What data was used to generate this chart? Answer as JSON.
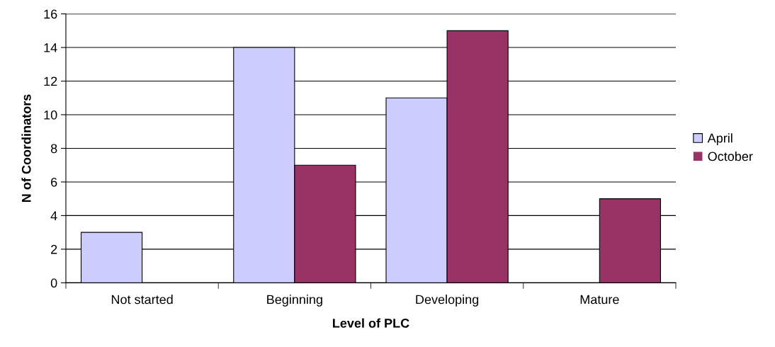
{
  "chart_data": {
    "type": "bar",
    "xlabel": "Level of PLC",
    "ylabel": "N of Coordinators",
    "categories": [
      "Not started",
      "Beginning",
      "Developing",
      "Mature"
    ],
    "series": [
      {
        "name": "April",
        "color": "#ccccff",
        "values": [
          3,
          14,
          11,
          0
        ]
      },
      {
        "name": "October",
        "color": "#993366",
        "values": [
          0,
          7,
          15,
          5
        ]
      }
    ],
    "ylim": [
      0,
      16
    ],
    "yticks": [
      0,
      2,
      4,
      6,
      8,
      10,
      12,
      14,
      16
    ],
    "grid": "y",
    "legend": "right"
  }
}
